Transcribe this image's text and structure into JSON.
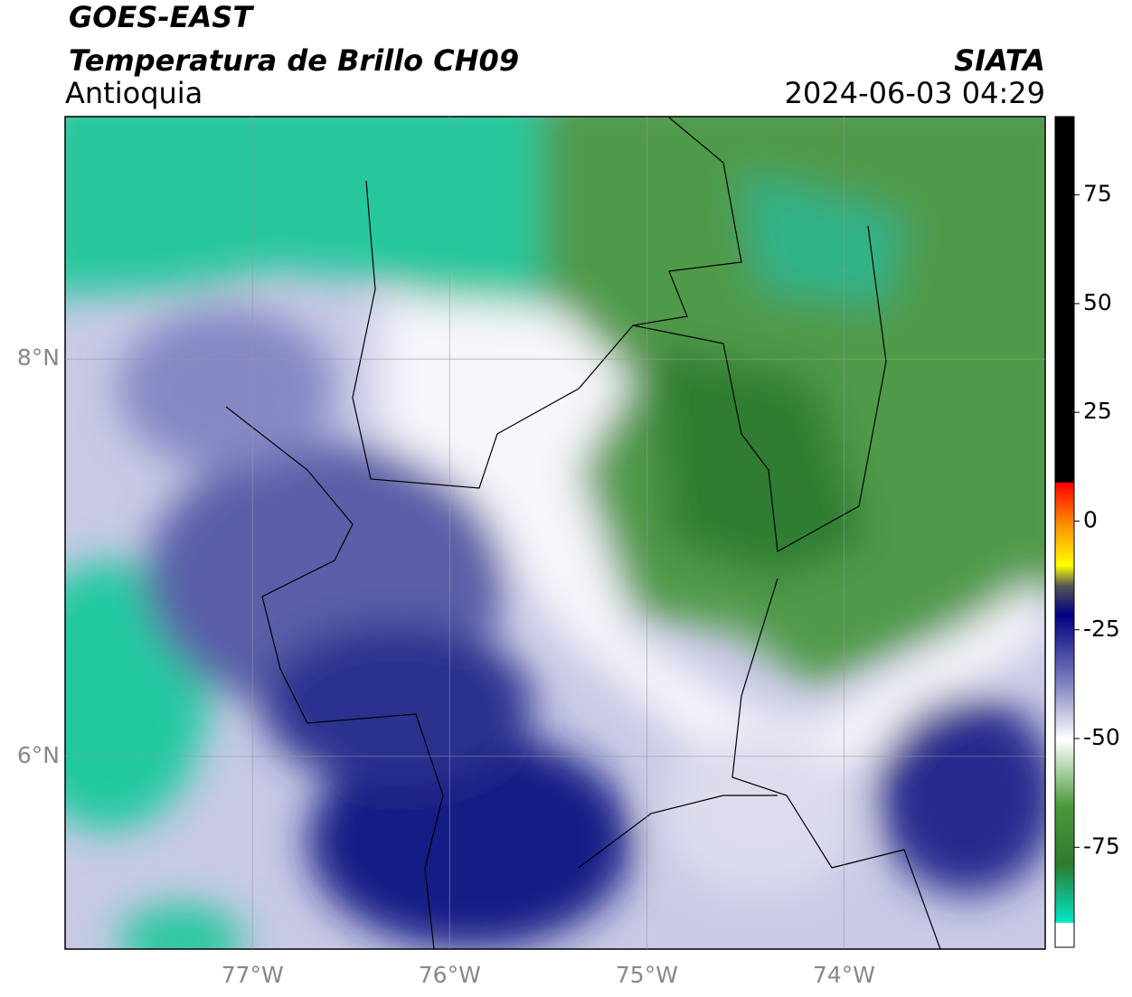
{
  "header": {
    "title": "GOES-EAST",
    "subtitle": "Temperatura de Brillo CH09",
    "region": "Antioquia",
    "source": "SIATA",
    "timestamp": "2024-06-03 04:29"
  },
  "map": {
    "xlim": [
      -77.95,
      -72.98
    ],
    "ylim": [
      5.03,
      9.22
    ],
    "xticks": [
      {
        "value": -77,
        "label": "77°W"
      },
      {
        "value": -76,
        "label": "76°W"
      },
      {
        "value": -75,
        "label": "75°W"
      },
      {
        "value": -74,
        "label": "74°W"
      }
    ],
    "yticks": [
      {
        "value": 6,
        "label": "6°N"
      },
      {
        "value": 8,
        "label": "8°N"
      }
    ],
    "grid": true
  },
  "colorbar": {
    "lim": [
      -98,
      93
    ],
    "ticks": [
      -75,
      -50,
      -25,
      0,
      25,
      50,
      75
    ]
  }
}
